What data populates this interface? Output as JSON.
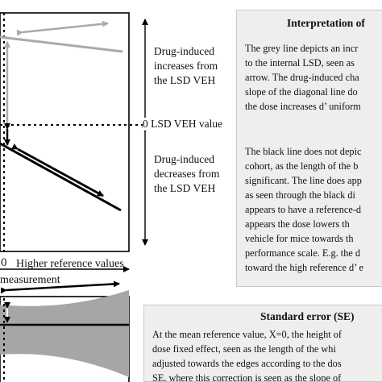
{
  "upper_chart": {
    "right_labels": {
      "increases": [
        "Drug-induced",
        "increases from",
        "the LSD VEH"
      ],
      "zero_label": "0 LSD VEH value",
      "decreases": [
        "Drug-induced",
        "decreases from",
        "the LSD VEH"
      ]
    },
    "x_axis": {
      "zero": "0",
      "higher_label": "Higher reference values",
      "measurement": "measurement"
    }
  },
  "interpretation_panel": {
    "title": "Interpretation of",
    "para1": [
      "The grey line depicts an incr",
      "to the internal LSD, seen as",
      "arrow. The drug-induced cha",
      "slope of the diagonal line do",
      "the dose increases d’ uniform"
    ],
    "para2": [
      "The black line does not depic",
      "cohort, as the length of the b",
      "significant. The line does app",
      "as seen through the black di",
      "appears to have a reference-d",
      "appears the dose lowers th",
      "vehicle for mice towards th",
      "performance scale. E.g. the d",
      "toward the high reference d’ e"
    ]
  },
  "se_panel": {
    "title": "Standard error (SE)",
    "lines": [
      "At the mean reference value, X=0, the height of",
      "dose fixed effect, seen as the length of the whi",
      "adjusted towards the edges according to the dos",
      "SE, where this correction is seen as the slope of"
    ]
  },
  "colors": {
    "grey_line": "#aaaaaa",
    "black_line": "#000000",
    "panel_bg": "#eeeeee",
    "se_band": "#a6a6a6"
  }
}
